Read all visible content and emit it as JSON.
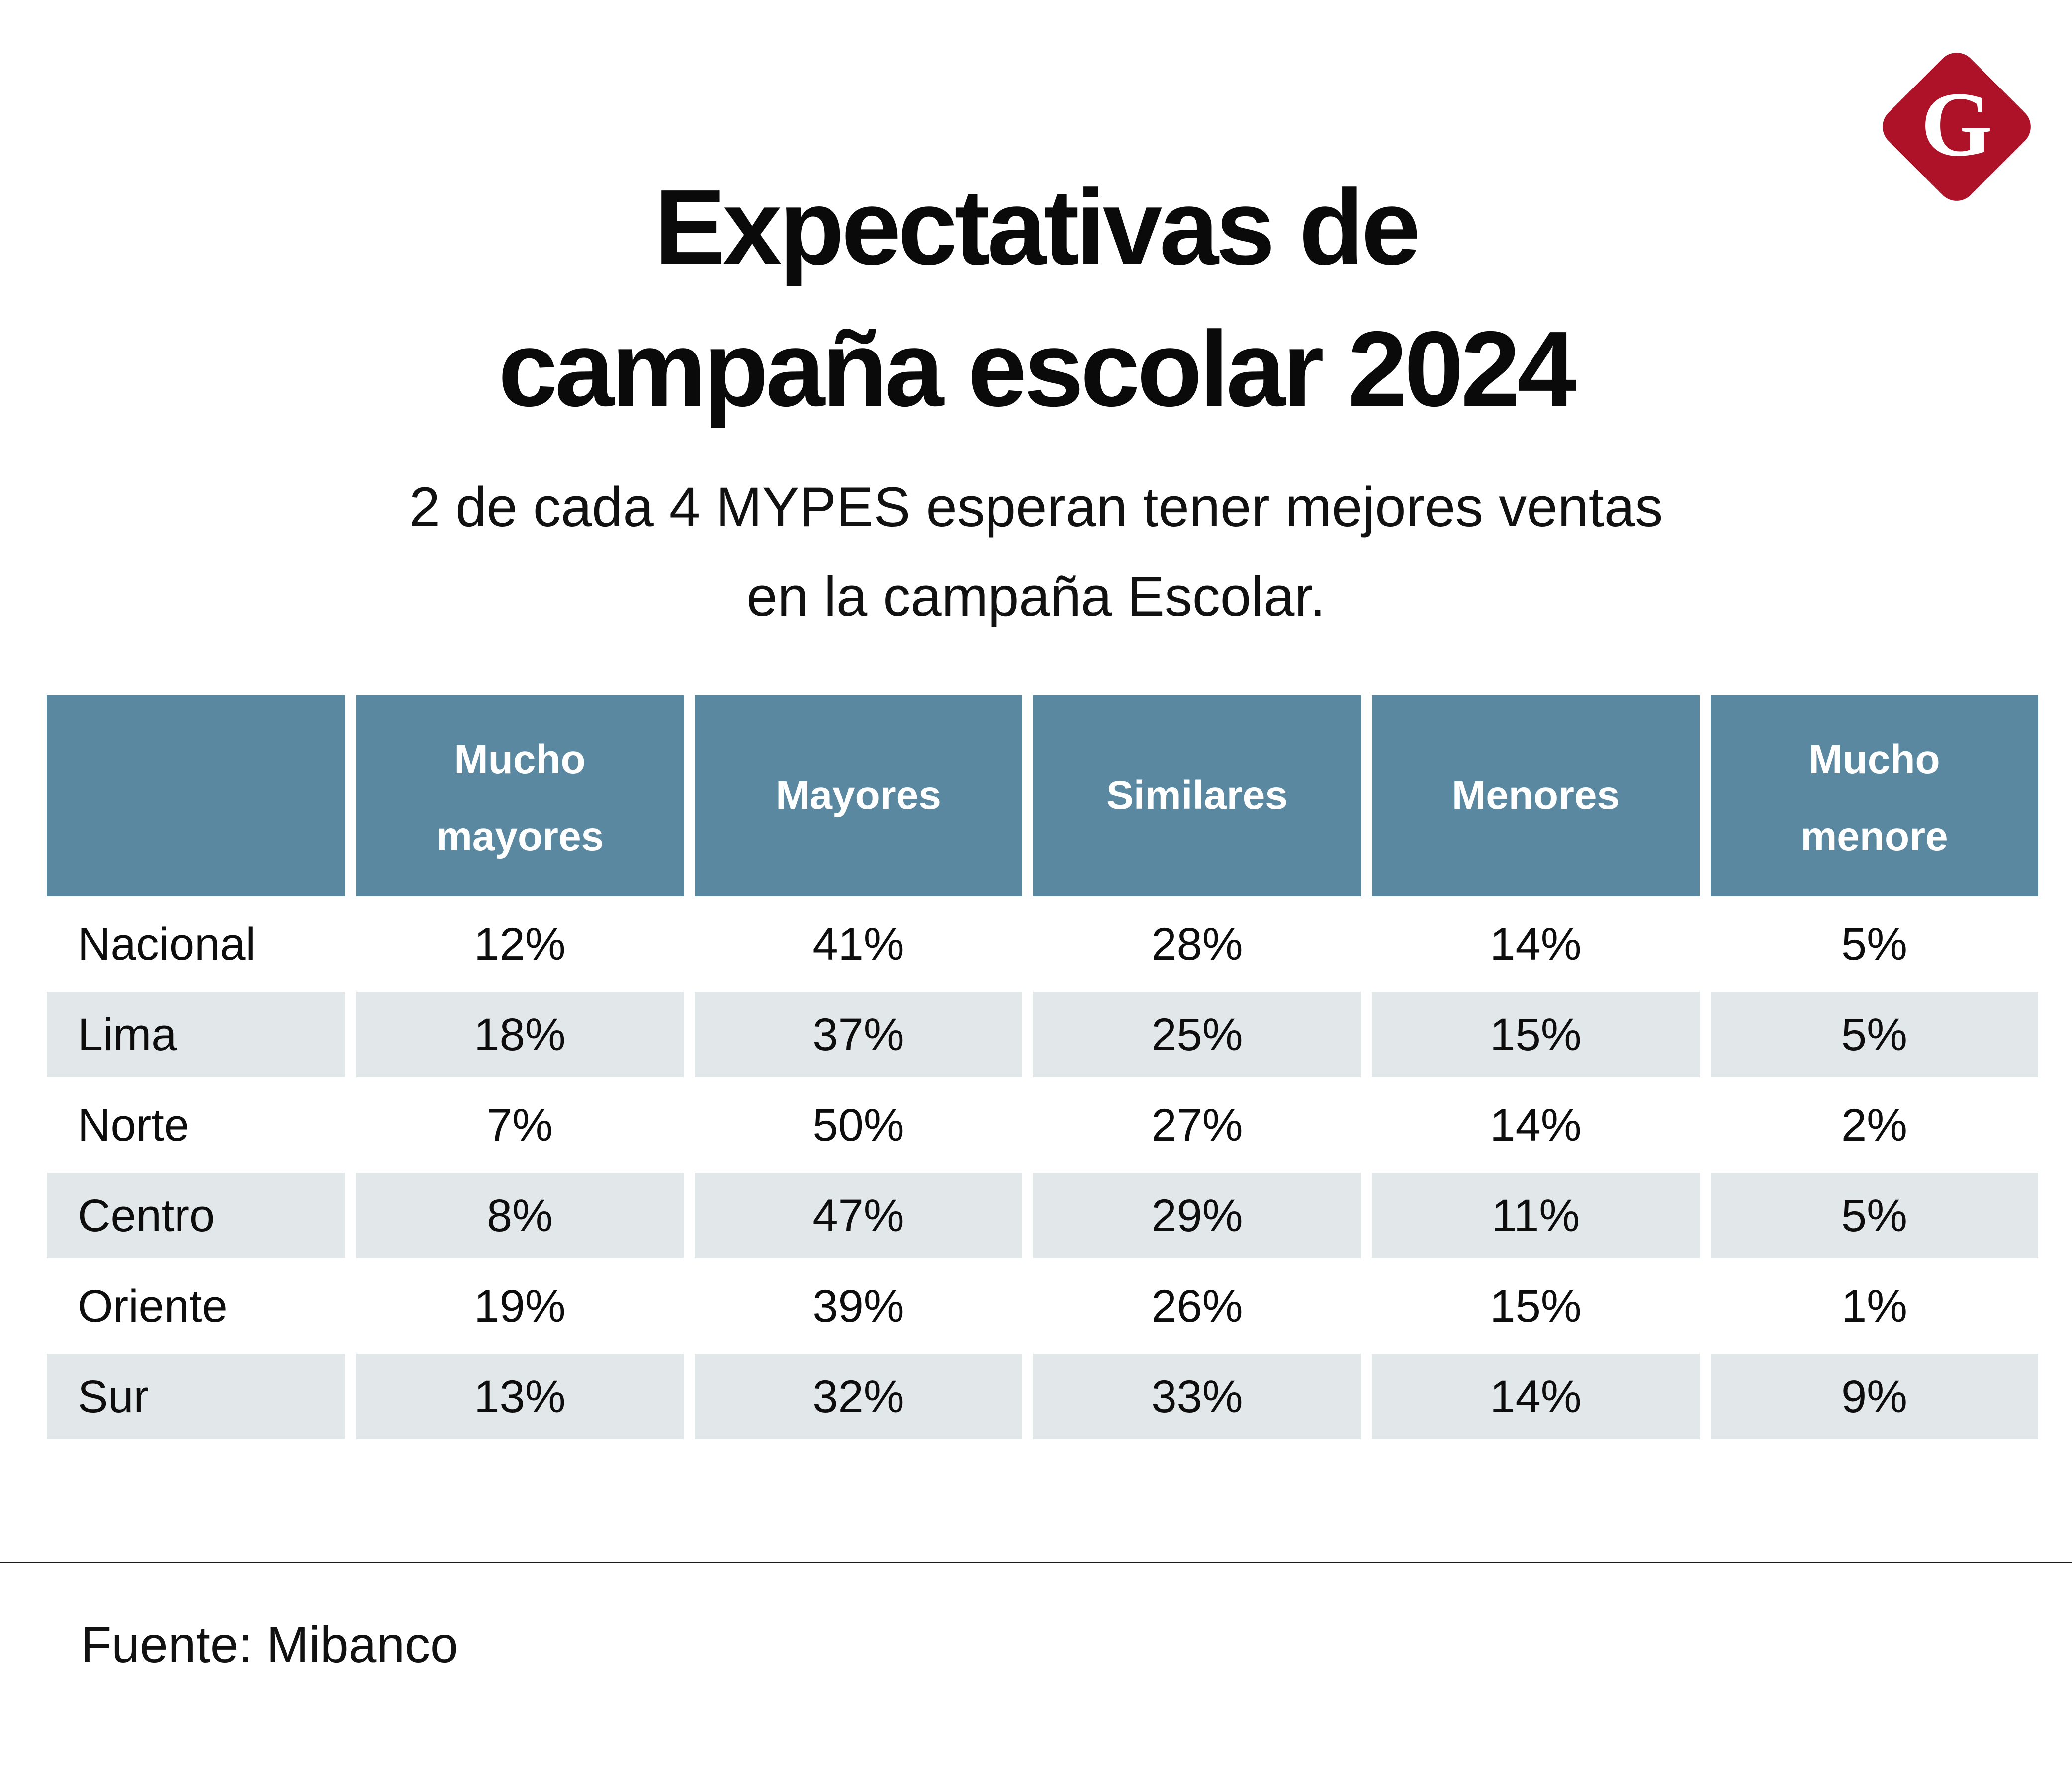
{
  "logo": {
    "letter": "G",
    "bg_color": "#AE1228",
    "shape": "diamond"
  },
  "title": {
    "line1": "Expectativas de",
    "line2": "campaña escolar 2024"
  },
  "subtitle": {
    "line1": "2 de cada 4 MYPES esperan tener mejores ventas",
    "line2": "en la campaña Escolar."
  },
  "chart_data": {
    "type": "table",
    "title": "Expectativas de campaña escolar 2024",
    "columns": [
      "",
      "Mucho mayores",
      "Mayores",
      "Similares",
      "Menores",
      "Mucho menore"
    ],
    "rows": [
      {
        "label": "Nacional",
        "values": [
          "12%",
          "41%",
          "28%",
          "14%",
          "5%"
        ]
      },
      {
        "label": "Lima",
        "values": [
          "18%",
          "37%",
          "25%",
          "15%",
          "5%"
        ]
      },
      {
        "label": "Norte",
        "values": [
          "7%",
          "50%",
          "27%",
          "14%",
          "2%"
        ]
      },
      {
        "label": "Centro",
        "values": [
          "8%",
          "47%",
          "29%",
          "11%",
          "5%"
        ]
      },
      {
        "label": "Oriente",
        "values": [
          "19%",
          "39%",
          "26%",
          "15%",
          "1%"
        ]
      },
      {
        "label": "Sur",
        "values": [
          "13%",
          "32%",
          "33%",
          "14%",
          "9%"
        ]
      }
    ],
    "source": "Fuente: Mibanco"
  },
  "table": {
    "header_bg": "#5A88A1",
    "alt_row_bg": "#E2E7EA",
    "headers": [
      {
        "line1": "",
        "line2": ""
      },
      {
        "line1": "Mucho",
        "line2": "mayores"
      },
      {
        "line1": "Mayores",
        "line2": ""
      },
      {
        "line1": "Similares",
        "line2": ""
      },
      {
        "line1": "Menores",
        "line2": ""
      },
      {
        "line1": "Mucho",
        "line2": "menore"
      }
    ]
  },
  "footer": {
    "source_label": "Fuente: Mibanco"
  }
}
